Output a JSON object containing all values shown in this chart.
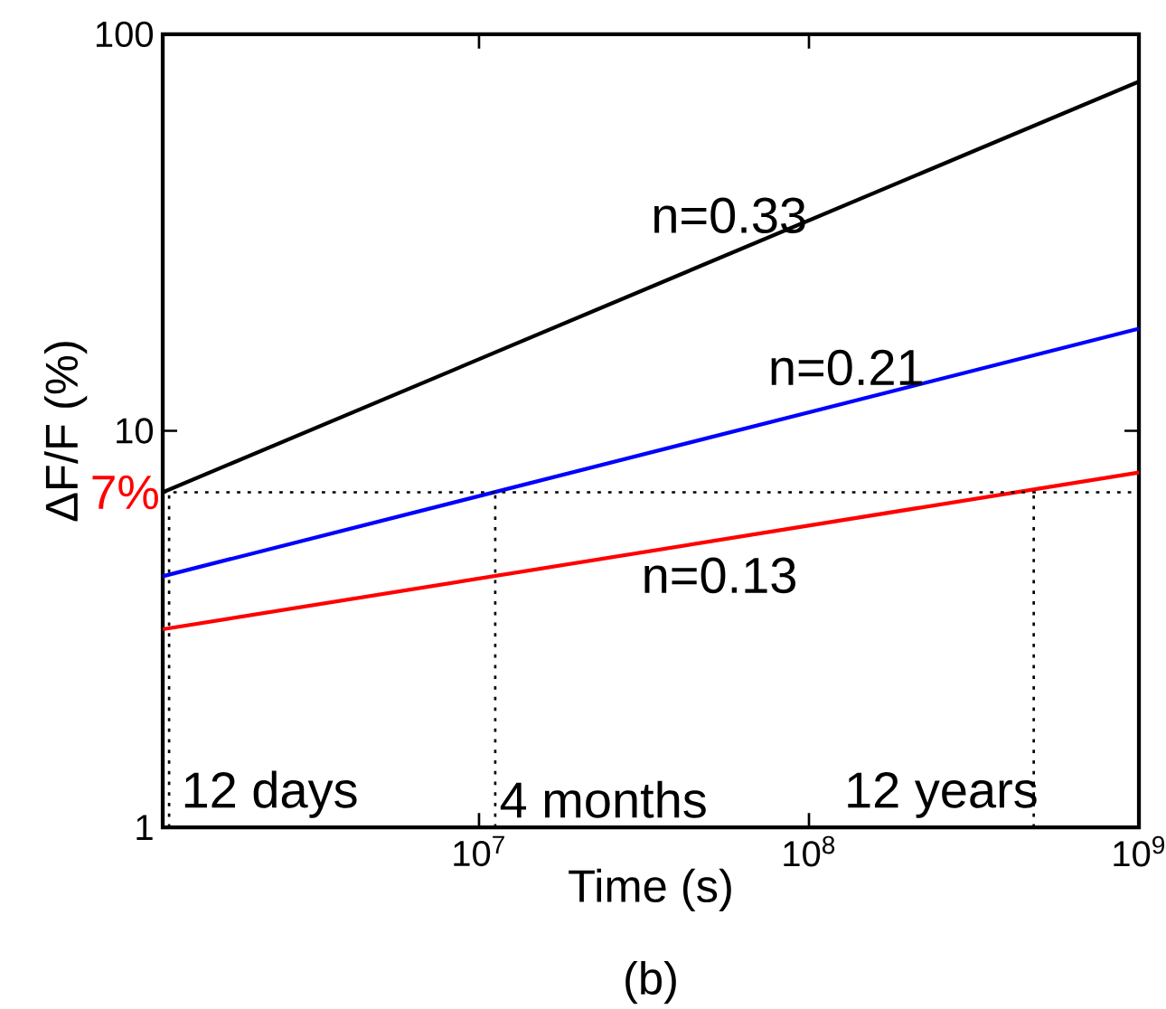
{
  "chart_data": {
    "type": "line",
    "xlabel": "Time (s)",
    "ylabel": "ΔF/F (%)",
    "log": "xy",
    "xlim": [
      1100000.0,
      1000000000.0
    ],
    "ylim": [
      1,
      100
    ],
    "xticks": [
      {
        "value": 10000000.0,
        "label": "10$^{7}$"
      },
      {
        "value": 100000000.0,
        "label": "10$^{8}$"
      },
      {
        "value": 1000000000.0,
        "label": "10$^{9}$"
      }
    ],
    "yticks": [
      1,
      10,
      100
    ],
    "grid": false,
    "marker": "none",
    "line_style": "solid",
    "series": [
      {
        "name": "n=0.33",
        "color": "#000000",
        "x": [
          1100000.0,
          1000000000.0
        ],
        "values": [
          7,
          76
        ]
      },
      {
        "name": "n=0.21",
        "color": "#0000ff",
        "x": [
          1100000.0,
          1000000000.0
        ],
        "values": [
          4.3,
          18.1
        ]
      },
      {
        "name": "n=0.13",
        "color": "#ff0000",
        "x": [
          1100000.0,
          1000000000.0
        ],
        "values": [
          3.16,
          7.85
        ]
      },
      {
        "color": "#000000",
        "line_style": "dotted",
        "x": [
          1150000.0,
          1150000.0
        ],
        "values": [
          1,
          7
        ]
      },
      {
        "color": "#000000",
        "line_style": "dotted",
        "x": [
          11200000.0,
          11200000.0
        ],
        "values": [
          1,
          7
        ]
      },
      {
        "color": "#000000",
        "line_style": "dotted",
        "x": [
          480000000.0,
          480000000.0
        ],
        "values": [
          1,
          7
        ]
      }
    ],
    "ref_lines": [
      {
        "axis": "y",
        "value": 7,
        "label": "7%",
        "color": "#000000",
        "line_style": "dotted"
      }
    ],
    "annotations": [
      "12 days",
      "4 months",
      "12 years",
      "(b)"
    ]
  }
}
